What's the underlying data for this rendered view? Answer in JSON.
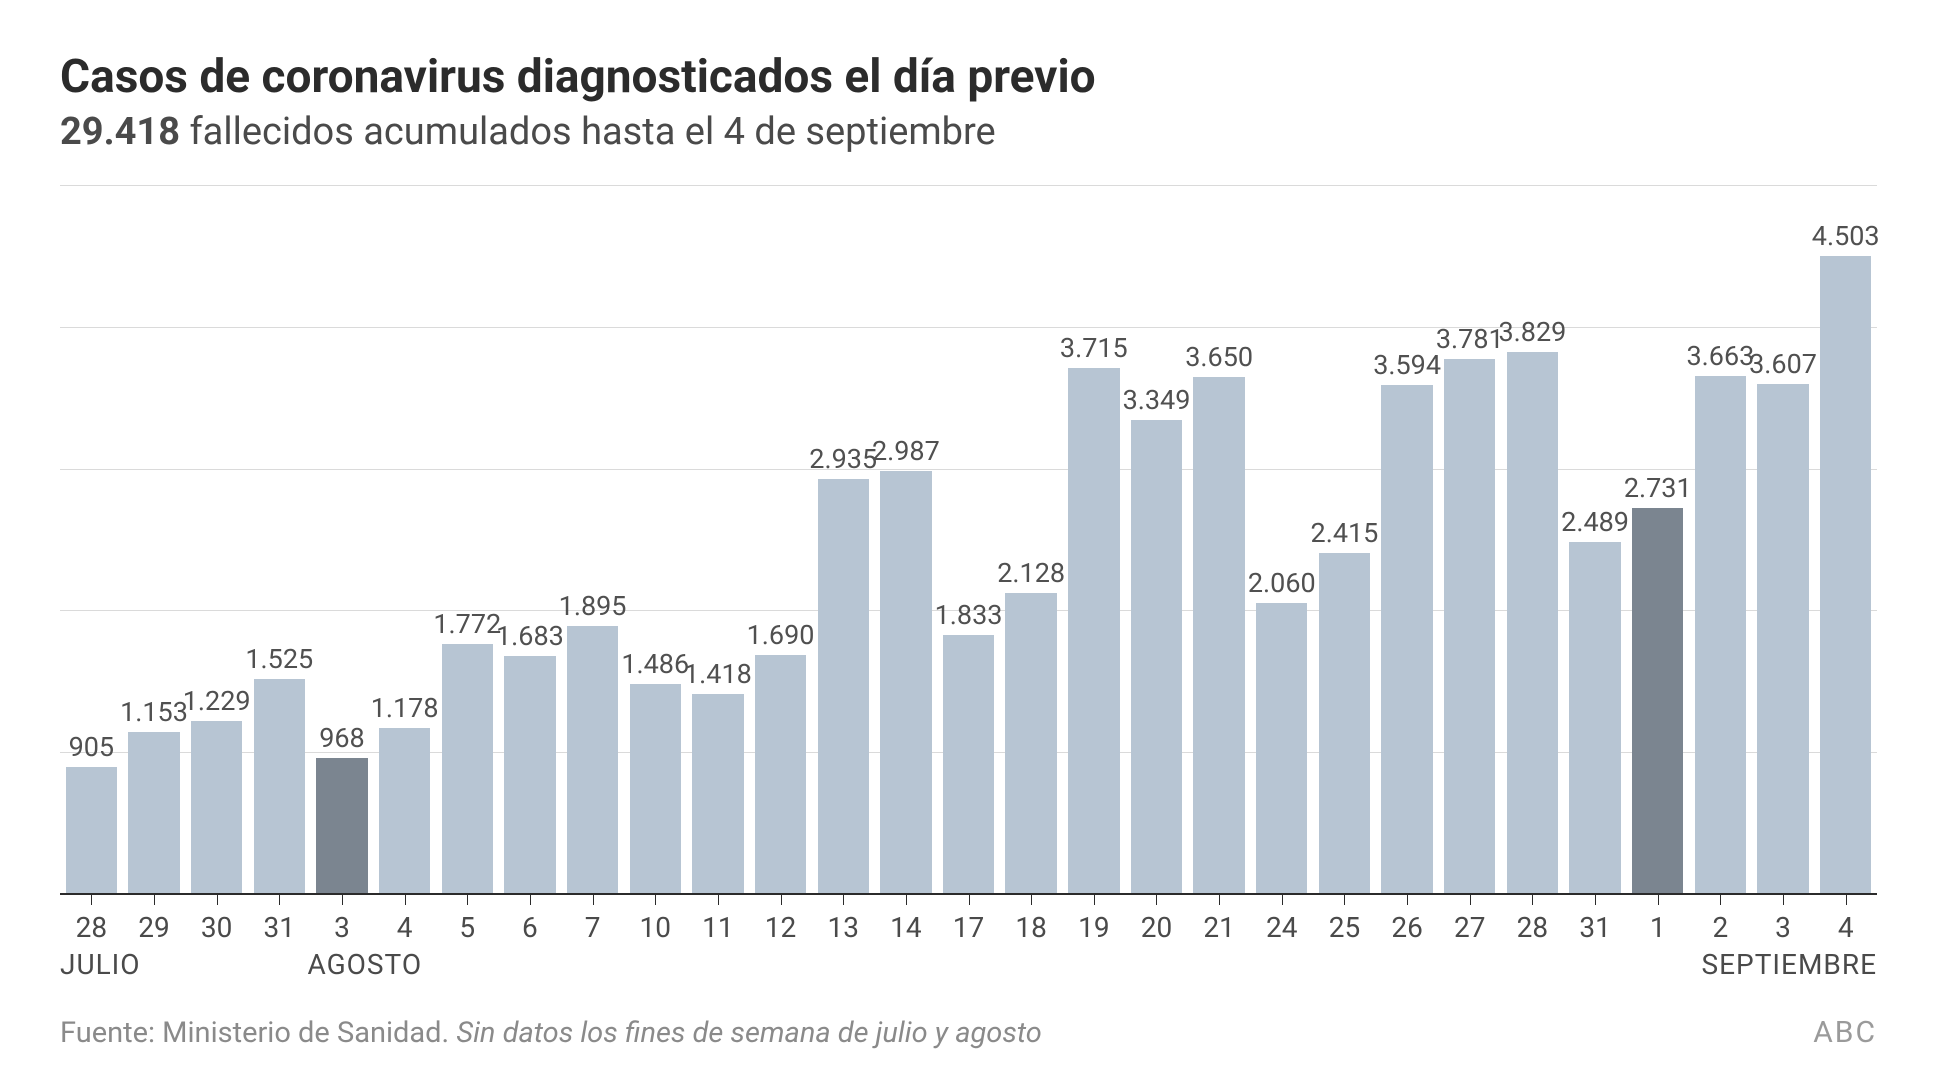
{
  "title": "Casos de coronavirus diagnosticados el día previo",
  "subtitle_bold": "29.418",
  "subtitle_rest": " fallecidos acumulados hasta el 4 de septiembre",
  "source_prefix": "Fuente: Ministerio de Sanidad. ",
  "source_note_italic": "Sin datos los fines de semana de julio y agosto",
  "brand": "ABC",
  "chart": {
    "type": "bar",
    "y_max": 5000,
    "gridlines_at": [
      1000,
      2000,
      3000,
      4000,
      5000
    ],
    "bar_color": "#b7c5d3",
    "bar_highlight_color": "#7b8590",
    "bar_width_pct": 82,
    "grid_color": "#dadada",
    "baseline_color": "#2b2b2b",
    "label_fontsize": 27,
    "label_color": "#505050",
    "axis_label_color": "#4a4a4a",
    "axis_label_fontsize": 28,
    "months": {
      "JULIO": 0,
      "AGOSTO": 4,
      "SEPTIEMBRE": 25
    },
    "data": [
      {
        "day": "28",
        "value": 905,
        "label": "905",
        "highlight": false
      },
      {
        "day": "29",
        "value": 1153,
        "label": "1.153",
        "highlight": false
      },
      {
        "day": "30",
        "value": 1229,
        "label": "1.229",
        "highlight": false
      },
      {
        "day": "31",
        "value": 1525,
        "label": "1.525",
        "highlight": false
      },
      {
        "day": "3",
        "value": 968,
        "label": "968",
        "highlight": true
      },
      {
        "day": "4",
        "value": 1178,
        "label": "1.178",
        "highlight": false
      },
      {
        "day": "5",
        "value": 1772,
        "label": "1.772",
        "highlight": false
      },
      {
        "day": "6",
        "value": 1683,
        "label": "1.683",
        "highlight": false
      },
      {
        "day": "7",
        "value": 1895,
        "label": "1.895",
        "highlight": false
      },
      {
        "day": "10",
        "value": 1486,
        "label": "1.486",
        "highlight": false
      },
      {
        "day": "11",
        "value": 1418,
        "label": "1.418",
        "highlight": false
      },
      {
        "day": "12",
        "value": 1690,
        "label": "1.690",
        "highlight": false
      },
      {
        "day": "13",
        "value": 2935,
        "label": "2.935",
        "highlight": false
      },
      {
        "day": "14",
        "value": 2987,
        "label": "2.987",
        "highlight": false
      },
      {
        "day": "17",
        "value": 1833,
        "label": "1.833",
        "highlight": false
      },
      {
        "day": "18",
        "value": 2128,
        "label": "2.128",
        "highlight": false
      },
      {
        "day": "19",
        "value": 3715,
        "label": "3.715",
        "highlight": false
      },
      {
        "day": "20",
        "value": 3349,
        "label": "3.349",
        "highlight": false
      },
      {
        "day": "21",
        "value": 3650,
        "label": "3.650",
        "highlight": false
      },
      {
        "day": "24",
        "value": 2060,
        "label": "2.060",
        "highlight": false
      },
      {
        "day": "25",
        "value": 2415,
        "label": "2.415",
        "highlight": false
      },
      {
        "day": "26",
        "value": 3594,
        "label": "3.594",
        "highlight": false
      },
      {
        "day": "27",
        "value": 3781,
        "label": "3.781",
        "highlight": false
      },
      {
        "day": "28",
        "value": 3829,
        "label": "3.829",
        "highlight": false
      },
      {
        "day": "31",
        "value": 2489,
        "label": "2.489",
        "highlight": false
      },
      {
        "day": "1",
        "value": 2731,
        "label": "2.731",
        "highlight": true
      },
      {
        "day": "2",
        "value": 3663,
        "label": "3.663",
        "highlight": false
      },
      {
        "day": "3",
        "value": 3607,
        "label": "3.607",
        "highlight": false
      },
      {
        "day": "4",
        "value": 4503,
        "label": "4.503",
        "highlight": false
      }
    ]
  }
}
